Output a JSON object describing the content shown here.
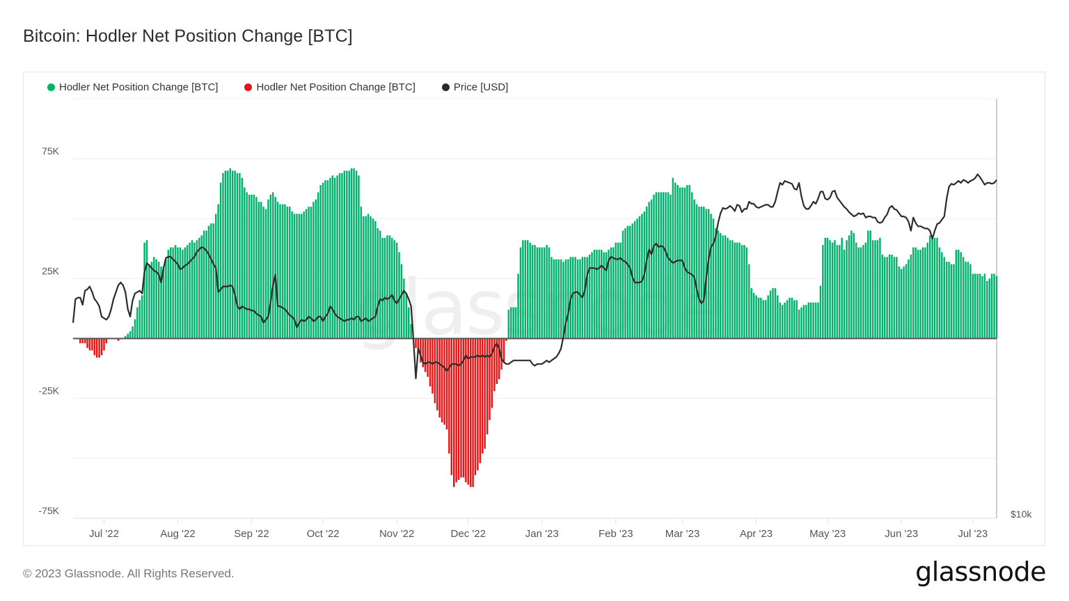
{
  "title": "Bitcoin: Hodler Net Position Change [BTC]",
  "footer": "© 2023 Glassnode. All Rights Reserved.",
  "logo": "glassnode",
  "watermark": "glassnode",
  "colors": {
    "positive": "#00b36b",
    "negative": "#ee1111",
    "price": "#2b2b2b",
    "grid": "#eeeeee"
  },
  "legend": [
    {
      "label": "Hodler Net Position Change [BTC]",
      "color": "#00b36b"
    },
    {
      "label": "Hodler Net Position Change [BTC]",
      "color": "#ee1111"
    },
    {
      "label": "Price [USD]",
      "color": "#2b2b2b"
    }
  ],
  "chart_data": {
    "type": "bar+line",
    "title": "Bitcoin: Hodler Net Position Change [BTC]",
    "xlim": [
      "2022-06-18",
      "2023-07-11"
    ],
    "x_interval": "daily",
    "ylim": [
      -75000,
      100000
    ],
    "y_ticks": [
      {
        "value": 75000,
        "label": "75K"
      },
      {
        "value": 25000,
        "label": "25K"
      },
      {
        "value": -25000,
        "label": "-25K"
      },
      {
        "value": -75000,
        "label": "-75K"
      }
    ],
    "y_grid": [
      75000,
      50000,
      25000,
      0,
      -25000,
      -50000,
      -75000
    ],
    "y2_scale": "log",
    "y2lim": [
      10000,
      41000
    ],
    "y2_ticks": [
      {
        "value": 10000,
        "label": "$10k"
      }
    ],
    "x_ticks": [
      {
        "date": "2022-07-01",
        "label": "Jul '22"
      },
      {
        "date": "2022-08-01",
        "label": "Aug '22"
      },
      {
        "date": "2022-09-01",
        "label": "Sep '22"
      },
      {
        "date": "2022-10-01",
        "label": "Oct '22"
      },
      {
        "date": "2022-11-01",
        "label": "Nov '22"
      },
      {
        "date": "2022-12-01",
        "label": "Dec '22"
      },
      {
        "date": "2023-01-01",
        "label": "Jan '23"
      },
      {
        "date": "2023-02-01",
        "label": "Feb '23"
      },
      {
        "date": "2023-03-01",
        "label": "Mar '23"
      },
      {
        "date": "2023-04-01",
        "label": "Apr '23"
      },
      {
        "date": "2023-05-01",
        "label": "May '23"
      },
      {
        "date": "2023-06-01",
        "label": "Jun '23"
      },
      {
        "date": "2023-07-01",
        "label": "Jul '23"
      }
    ],
    "grid": true,
    "legend_position": "top-left",
    "series": [
      {
        "name": "Hodler Net Position Change [BTC]",
        "type": "bar",
        "axis": "left",
        "values": [
          0,
          0,
          0,
          -2000,
          -2000,
          -2000,
          -4000,
          -5000,
          -5000,
          -7000,
          -8000,
          -8000,
          -7000,
          -5000,
          -2000,
          0,
          0,
          0,
          0,
          -1000,
          0,
          0,
          1000,
          2000,
          3000,
          5000,
          8000,
          13000,
          16000,
          18000,
          40000,
          41000,
          31000,
          32000,
          34000,
          33000,
          32000,
          30000,
          30000,
          33000,
          37000,
          38000,
          38000,
          39000,
          38000,
          38000,
          37000,
          38000,
          39000,
          40000,
          41000,
          40000,
          41000,
          42000,
          43000,
          45000,
          45000,
          47000,
          48000,
          48000,
          52000,
          56000,
          65000,
          69000,
          70000,
          70000,
          71000,
          70000,
          70000,
          69000,
          69000,
          67000,
          63000,
          61000,
          60000,
          60000,
          60000,
          59000,
          57000,
          57000,
          55000,
          54000,
          58000,
          60000,
          61000,
          59000,
          57000,
          56000,
          56000,
          56000,
          55000,
          55000,
          53000,
          52000,
          52000,
          52000,
          52000,
          53000,
          54000,
          55000,
          55000,
          57000,
          58000,
          61000,
          64000,
          65000,
          66000,
          66000,
          67000,
          68000,
          67000,
          68000,
          69000,
          69000,
          70000,
          70000,
          70000,
          71000,
          71000,
          70000,
          68000,
          55000,
          51000,
          51000,
          52000,
          51000,
          50000,
          49000,
          46000,
          45000,
          42000,
          42000,
          43000,
          43000,
          42000,
          41000,
          40000,
          36000,
          31000,
          25000,
          19000,
          13000,
          6000,
          0,
          -4000,
          -6000,
          -10000,
          -12000,
          -14000,
          -16000,
          -20000,
          -23000,
          -27000,
          -30000,
          -33000,
          -35000,
          -36000,
          -38000,
          -48000,
          -57000,
          -62000,
          -60000,
          -59000,
          -58000,
          -58000,
          -60000,
          -61000,
          -62000,
          -62000,
          -57000,
          -55000,
          -52000,
          -48000,
          -46000,
          -40000,
          -34000,
          -29000,
          -22000,
          -19000,
          -17000,
          -13000,
          -10000,
          -1000,
          12000,
          13000,
          13000,
          13000,
          27000,
          38000,
          41000,
          41000,
          41000,
          40000,
          39000,
          39000,
          38000,
          38000,
          38000,
          38000,
          39000,
          38000,
          34000,
          33000,
          33000,
          33000,
          33000,
          32000,
          33000,
          33000,
          34000,
          34000,
          34000,
          33000,
          33000,
          34000,
          34000,
          34000,
          35000,
          36000,
          37000,
          37000,
          37000,
          37000,
          36000,
          36000,
          37000,
          38000,
          38000,
          40000,
          40000,
          40000,
          45000,
          46000,
          47000,
          47000,
          48000,
          49000,
          50000,
          51000,
          52000,
          53000,
          55000,
          57000,
          58000,
          60000,
          61000,
          61000,
          61000,
          61000,
          61000,
          61000,
          60000,
          67000,
          65000,
          64000,
          63000,
          63000,
          63000,
          64000,
          64000,
          61000,
          58000,
          56000,
          55000,
          55000,
          55000,
          54000,
          54000,
          52000,
          50000,
          46000,
          45000,
          44000,
          43000,
          43000,
          42000,
          41000,
          41000,
          40000,
          40000,
          40000,
          39000,
          39000,
          38000,
          31000,
          21000,
          19000,
          18000,
          17000,
          17000,
          16000,
          16000,
          18000,
          20000,
          21000,
          21000,
          18000,
          15000,
          14000,
          15000,
          16000,
          17000,
          17000,
          16000,
          16000,
          12000,
          13000,
          14000,
          14000,
          15000,
          15000,
          15000,
          15000,
          15000,
          22000,
          39000,
          42000,
          42000,
          41000,
          40000,
          41000,
          39000,
          39000,
          42000,
          37000,
          41000,
          43000,
          45000,
          44000,
          40000,
          38000,
          38000,
          39000,
          40000,
          45000,
          45000,
          41000,
          41000,
          41000,
          42000,
          35000,
          34000,
          34000,
          35000,
          35000,
          34000,
          34000,
          30000,
          29000,
          30000,
          31000,
          33000,
          35000,
          38000,
          38000,
          37000,
          37000,
          38000,
          38000,
          40000,
          43000,
          43000,
          42000,
          42000,
          38000,
          36000,
          34000,
          32000,
          32000,
          31000,
          31000,
          37000,
          37000,
          36000,
          34000,
          32000,
          32000,
          31000,
          27000,
          27000,
          27000,
          27000,
          26000,
          27000,
          24000,
          25000,
          27000,
          27000,
          26000
        ]
      },
      {
        "name": "Price [USD]",
        "type": "line",
        "axis": "right",
        "values": [
          19300,
          20900,
          21000,
          21000,
          20500,
          21500,
          21600,
          21800,
          21400,
          20900,
          20700,
          20400,
          19700,
          19600,
          19500,
          19700,
          20200,
          20900,
          21400,
          21900,
          22100,
          21900,
          21400,
          20200,
          19700,
          20800,
          21300,
          21400,
          21500,
          21300,
          22900,
          23600,
          23400,
          23200,
          23000,
          22900,
          22700,
          22100,
          23200,
          24000,
          24100,
          24100,
          23900,
          23700,
          23500,
          23100,
          23200,
          23400,
          23500,
          23700,
          23900,
          24100,
          24500,
          24700,
          24900,
          24800,
          24600,
          24300,
          23900,
          23500,
          23200,
          21400,
          21600,
          21800,
          21800,
          21800,
          21900,
          21800,
          21200,
          20400,
          20200,
          20400,
          20300,
          20200,
          20200,
          20100,
          20100,
          19900,
          19800,
          19700,
          19300,
          19500,
          19700,
          20700,
          21900,
          22700,
          20400,
          20400,
          20300,
          20200,
          20000,
          19800,
          19700,
          19500,
          19000,
          19300,
          19500,
          19400,
          19500,
          19700,
          19600,
          19400,
          19500,
          19700,
          19700,
          19400,
          19700,
          19900,
          20400,
          20200,
          19900,
          19700,
          19600,
          19500,
          19400,
          19500,
          19500,
          19600,
          19500,
          19700,
          19700,
          19400,
          19500,
          19600,
          19400,
          19500,
          19600,
          19700,
          20400,
          20900,
          20800,
          21000,
          20900,
          21000,
          21200,
          20800,
          20600,
          20900,
          21200,
          21500,
          21300,
          20900,
          20400,
          18200,
          16000,
          17700,
          17300,
          16900,
          16800,
          16900,
          16900,
          16800,
          16900,
          16900,
          16800,
          16700,
          16600,
          16400,
          16600,
          16800,
          16800,
          16800,
          16700,
          16800,
          17000,
          17300,
          17100,
          17200,
          17200,
          17200,
          17300,
          17200,
          17300,
          17200,
          17300,
          17200,
          17400,
          17800,
          18000,
          17700,
          17100,
          16900,
          16800,
          16800,
          16900,
          17000,
          17000,
          17000,
          17000,
          17000,
          17000,
          17000,
          17000,
          16800,
          16700,
          16800,
          16800,
          16800,
          16900,
          17000,
          16900,
          17000,
          17100,
          17200,
          17400,
          17700,
          18400,
          19300,
          19900,
          20900,
          21300,
          21400,
          21400,
          21200,
          21000,
          21500,
          22700,
          23200,
          23200,
          23200,
          23100,
          23200,
          23400,
          23200,
          23000,
          23800,
          24100,
          24000,
          23900,
          23900,
          24000,
          23800,
          23700,
          23500,
          23200,
          22500,
          22100,
          22100,
          22100,
          22200,
          22700,
          23800,
          24700,
          24300,
          25000,
          25200,
          24900,
          25000,
          24900,
          24500,
          24000,
          23800,
          23600,
          23700,
          23800,
          23800,
          23800,
          23200,
          22900,
          22800,
          22700,
          22500,
          21600,
          20900,
          20600,
          20800,
          22400,
          23900,
          24900,
          25200,
          25800,
          27000,
          27900,
          28400,
          28300,
          28400,
          28600,
          28400,
          28100,
          28700,
          28600,
          28000,
          28300,
          28300,
          29000,
          28800,
          28800,
          28500,
          28400,
          28500,
          28600,
          28700,
          28700,
          28500,
          28500,
          29000,
          30000,
          30900,
          30700,
          31100,
          31000,
          30900,
          30800,
          30300,
          30200,
          30900,
          29500,
          28600,
          28300,
          28300,
          28600,
          29000,
          28800,
          29300,
          30000,
          30000,
          29300,
          29200,
          29400,
          30000,
          30100,
          29400,
          29100,
          28800,
          28500,
          28300,
          28000,
          27800,
          27600,
          27700,
          27900,
          27800,
          27900,
          27500,
          27600,
          27600,
          27500,
          27500,
          27100,
          27000,
          27100,
          27500,
          27800,
          28400,
          28600,
          28300,
          28200,
          27900,
          27600,
          27600,
          27500,
          27100,
          26300,
          27500,
          27000,
          26700,
          26700,
          26600,
          26500,
          26500,
          26300,
          25600,
          26300,
          26900,
          27000,
          27300,
          27600,
          29300,
          30500,
          30800,
          30700,
          30900,
          31100,
          30900,
          31200,
          31100,
          30900,
          31100,
          31200,
          31400,
          31800,
          31500,
          31100,
          30700,
          30900,
          30900,
          30800,
          30900,
          31200
        ]
      }
    ]
  }
}
